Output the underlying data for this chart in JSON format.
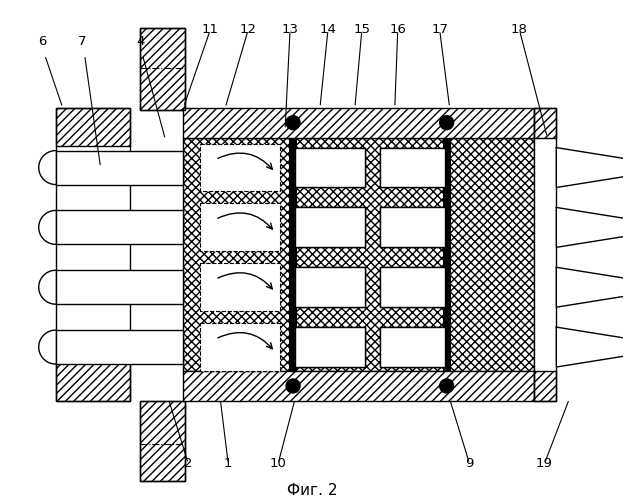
{
  "title": "Фиг. 2",
  "background": "#ffffff",
  "fig_w": 6.24,
  "fig_h": 5.0,
  "dpi": 100
}
